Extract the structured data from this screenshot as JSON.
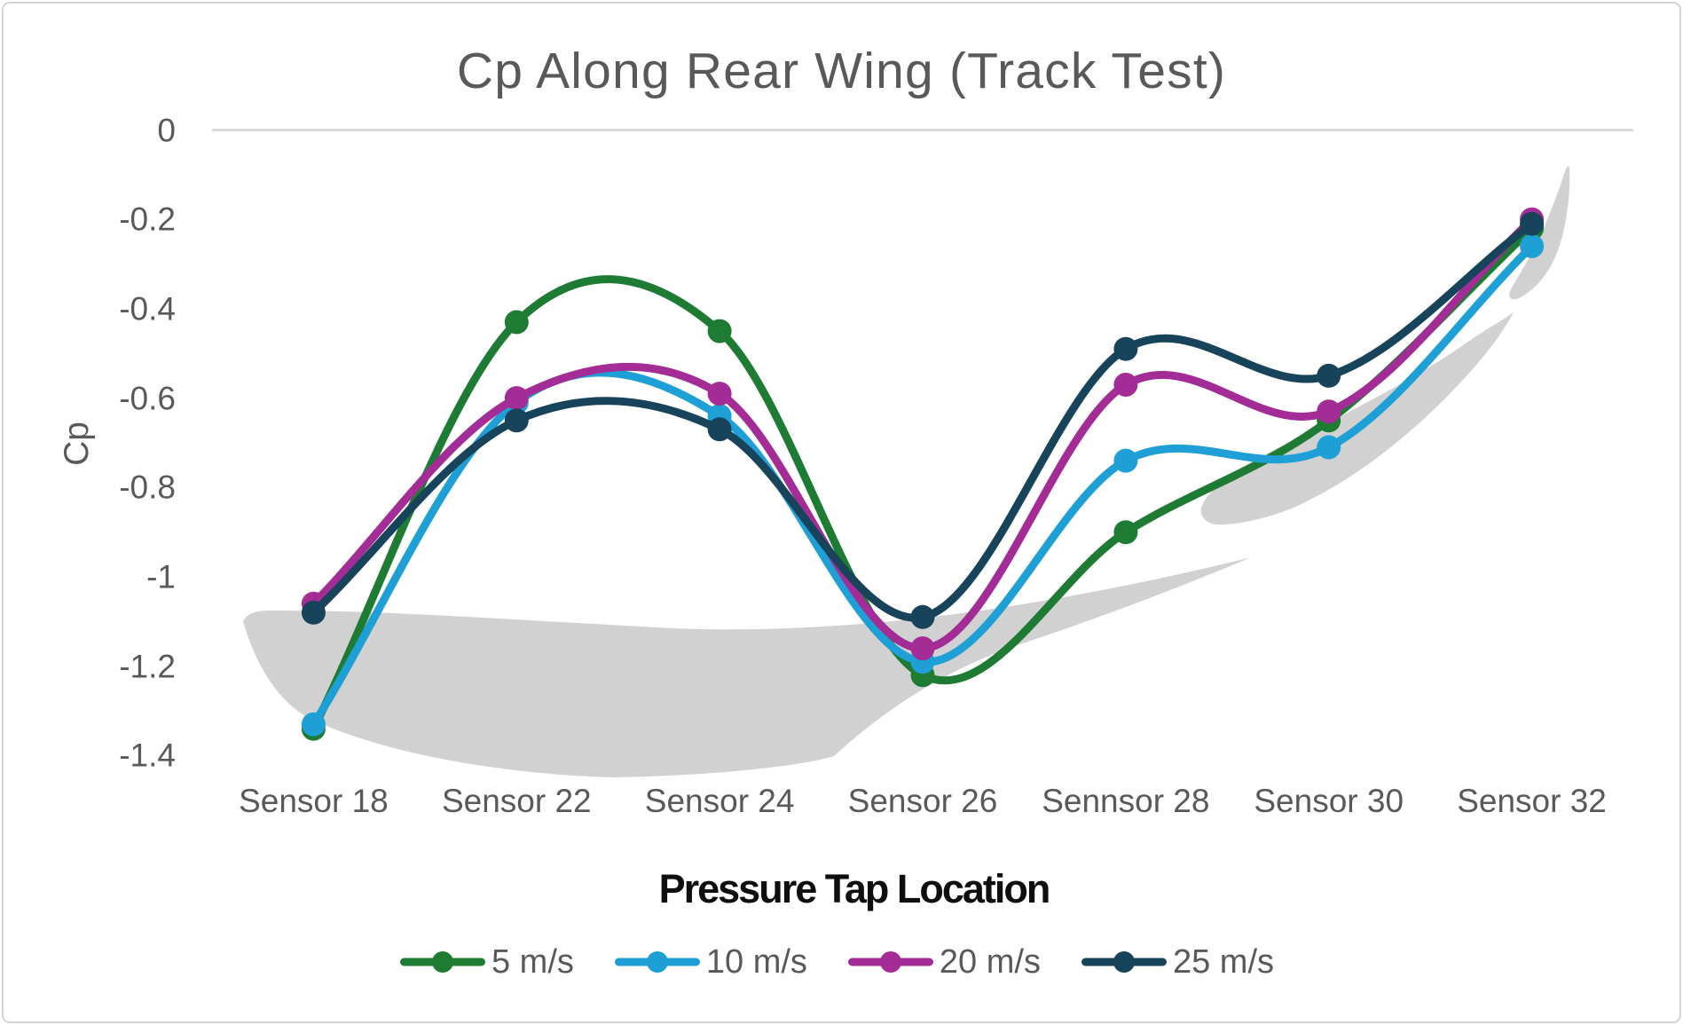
{
  "chart_data": {
    "type": "line",
    "title": "Cp Along Rear Wing (Track Test)",
    "xlabel": "Pressure Tap Location",
    "ylabel": "Cp",
    "categories": [
      "Sensor 18",
      "Sensor 22",
      "Sensor 24",
      "Sensor 26",
      "Sennsor 28",
      "Sensor 30",
      "Sensor 32"
    ],
    "series": [
      {
        "name": "5 m/s",
        "color": "#1E7B34",
        "values": [
          -1.34,
          -0.43,
          -0.45,
          -1.22,
          -0.9,
          -0.65,
          -0.22
        ]
      },
      {
        "name": "10 m/s",
        "color": "#1EA0D7",
        "values": [
          -1.33,
          -0.61,
          -0.64,
          -1.19,
          -0.74,
          -0.71,
          -0.26
        ]
      },
      {
        "name": "20 m/s",
        "color": "#A32C96",
        "values": [
          -1.06,
          -0.6,
          -0.59,
          -1.16,
          -0.57,
          -0.63,
          -0.2
        ]
      },
      {
        "name": "25 m/s",
        "color": "#17445A",
        "values": [
          -1.08,
          -0.65,
          -0.67,
          -1.09,
          -0.49,
          -0.55,
          -0.21
        ]
      }
    ],
    "ylim": [
      -1.4,
      0
    ],
    "yticks": [
      0,
      -0.2,
      -0.4,
      -0.6,
      -0.8,
      -1,
      -1.2,
      -1.4
    ],
    "ytick_labels": [
      "0",
      "-0.2",
      "-0.4",
      "-0.6",
      "-0.8",
      "-1",
      "-1.2",
      "-1.4"
    ],
    "grid": "zero-axis-line-only",
    "legend_position": "bottom",
    "line_style": "smooth",
    "markers": "circle"
  },
  "colors": {
    "title_text": "#595959",
    "tick_text": "#595959",
    "legend_text": "#595959",
    "x_axis_title_text": "#0e0e0e",
    "axis_line": "#D9D9D9",
    "chart_border": "#D4D4D4",
    "watermark": "#D1D1D1",
    "background": "#FFFFFF"
  },
  "watermark": {
    "name": "rear-wing-airfoil-silhouette",
    "color": "#D1D1D1",
    "paths": [
      "M 274 700 C 278 692 286 689 300 688 C 430 687 600 700 760 708 C 860 712 960 706 1060 694 C 1160 682 1290 658 1410 628 C 1330 662 1240 696 1150 726 C 1060 756 990 806 940 852 C 900 864 800 874 690 876 C 560 872 430 848 350 810 C 310 790 285 740 274 700 Z",
      "M 1354 572 C 1362 549 1396 527 1440 505 C 1510 470 1590 430 1655 385 C 1675 371 1695 360 1706 352 C 1690 382 1665 412 1630 448 C 1580 498 1521 544 1458 572 C 1424 586 1390 592 1370 591 C 1358 589 1352 581 1354 572 Z",
      "M 1769 190 C 1770 210 1768 238 1761 266 C 1754 294 1740 319 1716 334 C 1704 341 1698 336 1703 326 C 1714 306 1727 287 1737 264 C 1747 241 1757 215 1763 196 C 1766 187 1768 184 1769 190 Z"
    ]
  }
}
